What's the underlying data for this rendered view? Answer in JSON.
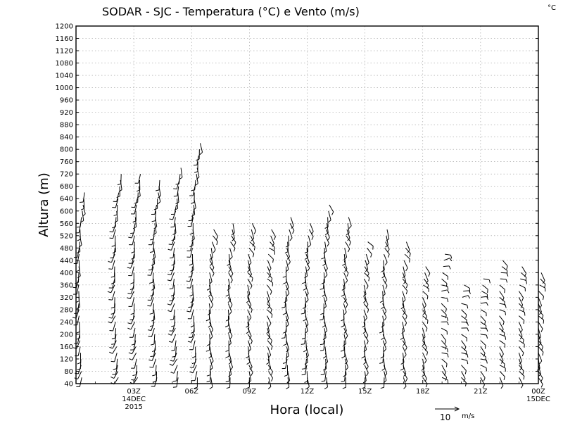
{
  "chart_data": {
    "type": "wind-barb",
    "title": "SODAR - SJC - Temperatura (°C) e Vento (m/s)",
    "corner_unit": "°C",
    "xlabel": "Hora (local)",
    "ylabel": "Altura (m)",
    "ylim": [
      40,
      1200
    ],
    "yticks": [
      40,
      80,
      120,
      160,
      200,
      240,
      280,
      320,
      360,
      400,
      440,
      480,
      520,
      560,
      600,
      640,
      680,
      720,
      760,
      800,
      840,
      880,
      920,
      960,
      1000,
      1040,
      1080,
      1120,
      1160,
      1200
    ],
    "xlim_hours": [
      0,
      24
    ],
    "xticks": [
      {
        "hour": 3,
        "label": "03Z",
        "sub1": "14DEC",
        "sub2": "2015"
      },
      {
        "hour": 6,
        "label": "06Z",
        "sub1": "",
        "sub2": ""
      },
      {
        "hour": 9,
        "label": "09Z",
        "sub1": "",
        "sub2": ""
      },
      {
        "hour": 12,
        "label": "12Z",
        "sub1": "",
        "sub2": ""
      },
      {
        "hour": 15,
        "label": "15Z",
        "sub1": "",
        "sub2": ""
      },
      {
        "hour": 18,
        "label": "18Z",
        "sub1": "",
        "sub2": ""
      },
      {
        "hour": 21,
        "label": "21Z",
        "sub1": "",
        "sub2": ""
      },
      {
        "hour": 24,
        "label": "00Z",
        "sub1": "15DEC",
        "sub2": ""
      }
    ],
    "grid": true,
    "reference_vector": {
      "value": "10",
      "unit": "m/s"
    },
    "profiles": [
      {
        "hour": 0.3,
        "top": 660,
        "dir": 200,
        "spd": 6
      },
      {
        "hour": 2.2,
        "top": 720,
        "dir": 210,
        "spd": 7
      },
      {
        "hour": 3.2,
        "top": 720,
        "dir": 210,
        "spd": 7
      },
      {
        "hour": 4.2,
        "top": 700,
        "dir": 200,
        "spd": 7
      },
      {
        "hour": 5.3,
        "top": 740,
        "dir": 210,
        "spd": 7
      },
      {
        "hour": 6.3,
        "top": 820,
        "dir": 200,
        "spd": 8
      },
      {
        "hour": 7.0,
        "top": 540,
        "dir": 170,
        "spd": 6
      },
      {
        "hour": 8.0,
        "top": 560,
        "dir": 170,
        "spd": 6
      },
      {
        "hour": 9.0,
        "top": 560,
        "dir": 160,
        "spd": 6
      },
      {
        "hour": 10.0,
        "top": 540,
        "dir": 150,
        "spd": 5
      },
      {
        "hour": 11.0,
        "top": 580,
        "dir": 180,
        "spd": 5
      },
      {
        "hour": 12.0,
        "top": 560,
        "dir": 180,
        "spd": 5
      },
      {
        "hour": 13.0,
        "top": 620,
        "dir": 180,
        "spd": 5
      },
      {
        "hour": 14.0,
        "top": 580,
        "dir": 170,
        "spd": 5
      },
      {
        "hour": 15.0,
        "top": 500,
        "dir": 160,
        "spd": 4
      },
      {
        "hour": 16.0,
        "top": 540,
        "dir": 170,
        "spd": 4
      },
      {
        "hour": 17.0,
        "top": 500,
        "dir": 160,
        "spd": 4
      },
      {
        "hour": 18.0,
        "top": 420,
        "dir": 150,
        "spd": 4
      },
      {
        "hour": 19.0,
        "top": 460,
        "dir": 120,
        "spd": 4
      },
      {
        "hour": 20.0,
        "top": 360,
        "dir": 120,
        "spd": 4
      },
      {
        "hour": 21.0,
        "top": 380,
        "dir": 120,
        "spd": 4
      },
      {
        "hour": 22.0,
        "top": 440,
        "dir": 130,
        "spd": 5
      },
      {
        "hour": 23.0,
        "top": 420,
        "dir": 140,
        "spd": 4
      },
      {
        "hour": 24.0,
        "top": 400,
        "dir": 150,
        "spd": 4
      }
    ]
  }
}
